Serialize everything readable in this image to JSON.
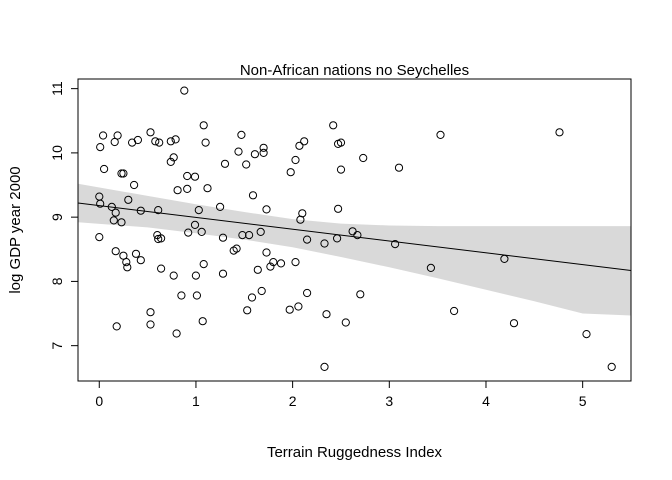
{
  "chart_data": {
    "type": "scatter",
    "title": "Non-African nations no Seychelles",
    "xlabel": "Terrain Ruggedness Index",
    "ylabel": "log GDP year 2000",
    "xlim": [
      -0.22,
      5.5
    ],
    "ylim": [
      6.45,
      11.15
    ],
    "xticks": [
      0,
      1,
      2,
      3,
      4,
      5
    ],
    "yticks": [
      7,
      8,
      9,
      10,
      11
    ],
    "grid": false,
    "legend": "none",
    "colors": {
      "points": "#000000",
      "line": "#000000",
      "band": "#d9d9d9",
      "frame": "#000000"
    },
    "regression": {
      "x": [
        -0.22,
        5.5
      ],
      "y": [
        9.22,
        8.17
      ]
    },
    "confidence_band": {
      "x": [
        -0.22,
        0.5,
        1.0,
        1.5,
        2.0,
        2.5,
        3.0,
        3.5,
        4.0,
        4.5,
        5.0,
        5.5
      ],
      "lower": [
        8.92,
        8.84,
        8.75,
        8.65,
        8.53,
        8.38,
        8.22,
        8.05,
        7.87,
        7.69,
        7.5,
        7.47
      ],
      "upper": [
        9.52,
        9.33,
        9.2,
        9.08,
        8.97,
        8.9,
        8.87,
        8.86,
        8.86,
        8.86,
        8.86,
        8.86
      ]
    },
    "points": [
      [
        0.88,
        10.97
      ],
      [
        0.04,
        10.27
      ],
      [
        0.19,
        10.27
      ],
      [
        0.01,
        10.09
      ],
      [
        0.16,
        10.17
      ],
      [
        0.34,
        10.16
      ],
      [
        0.4,
        10.2
      ],
      [
        0.53,
        10.32
      ],
      [
        0.58,
        10.18
      ],
      [
        0.62,
        10.16
      ],
      [
        0.74,
        10.18
      ],
      [
        0.79,
        10.21
      ],
      [
        0.77,
        9.93
      ],
      [
        0.74,
        9.86
      ],
      [
        1.08,
        10.43
      ],
      [
        1.1,
        10.16
      ],
      [
        1.3,
        9.83
      ],
      [
        1.44,
        10.02
      ],
      [
        1.47,
        10.28
      ],
      [
        1.52,
        9.82
      ],
      [
        1.61,
        9.98
      ],
      [
        1.7,
        10.0
      ],
      [
        1.7,
        10.08
      ],
      [
        2.07,
        10.11
      ],
      [
        2.12,
        10.18
      ],
      [
        2.03,
        9.89
      ],
      [
        1.98,
        9.7
      ],
      [
        2.42,
        10.43
      ],
      [
        2.47,
        10.14
      ],
      [
        2.5,
        10.16
      ],
      [
        2.5,
        9.74
      ],
      [
        2.73,
        9.92
      ],
      [
        3.53,
        10.28
      ],
      [
        4.76,
        10.32
      ],
      [
        3.1,
        9.77
      ],
      [
        0.05,
        9.75
      ],
      [
        0.23,
        9.68
      ],
      [
        0.25,
        9.68
      ],
      [
        0.36,
        9.5
      ],
      [
        0.91,
        9.64
      ],
      [
        0.99,
        9.63
      ],
      [
        0.81,
        9.42
      ],
      [
        0.91,
        9.44
      ],
      [
        1.12,
        9.45
      ],
      [
        1.59,
        9.34
      ],
      [
        0.0,
        9.32
      ],
      [
        0.01,
        9.21
      ],
      [
        0.13,
        9.16
      ],
      [
        0.17,
        9.07
      ],
      [
        0.3,
        9.27
      ],
      [
        0.23,
        8.92
      ],
      [
        0.43,
        9.1
      ],
      [
        0.61,
        9.11
      ],
      [
        1.03,
        9.11
      ],
      [
        1.25,
        9.16
      ],
      [
        1.73,
        9.12
      ],
      [
        2.1,
        9.06
      ],
      [
        2.08,
        8.96
      ],
      [
        2.47,
        9.13
      ],
      [
        0.15,
        8.95
      ],
      [
        0.6,
        8.72
      ],
      [
        0.64,
        8.67
      ],
      [
        0.61,
        8.66
      ],
      [
        0.92,
        8.76
      ],
      [
        0.99,
        8.88
      ],
      [
        1.06,
        8.77
      ],
      [
        1.28,
        8.68
      ],
      [
        1.39,
        8.48
      ],
      [
        1.48,
        8.72
      ],
      [
        1.55,
        8.72
      ],
      [
        1.67,
        8.77
      ],
      [
        1.73,
        8.45
      ],
      [
        2.15,
        8.65
      ],
      [
        2.33,
        8.59
      ],
      [
        2.46,
        8.67
      ],
      [
        2.62,
        8.78
      ],
      [
        2.67,
        8.72
      ],
      [
        3.06,
        8.58
      ],
      [
        0.0,
        8.69
      ],
      [
        0.17,
        8.47
      ],
      [
        0.25,
        8.4
      ],
      [
        0.38,
        8.43
      ],
      [
        0.43,
        8.33
      ],
      [
        0.28,
        8.3
      ],
      [
        0.29,
        8.22
      ],
      [
        0.64,
        8.2
      ],
      [
        0.77,
        8.09
      ],
      [
        1.0,
        8.09
      ],
      [
        1.08,
        8.27
      ],
      [
        1.28,
        8.12
      ],
      [
        1.42,
        8.51
      ],
      [
        1.77,
        8.23
      ],
      [
        1.8,
        8.3
      ],
      [
        1.88,
        8.28
      ],
      [
        2.03,
        8.3
      ],
      [
        1.97,
        7.56
      ],
      [
        1.68,
        7.85
      ],
      [
        1.64,
        8.18
      ],
      [
        1.58,
        7.75
      ],
      [
        1.53,
        7.55
      ],
      [
        2.06,
        7.61
      ],
      [
        2.15,
        7.82
      ],
      [
        0.85,
        7.78
      ],
      [
        0.53,
        7.52
      ],
      [
        0.53,
        7.33
      ],
      [
        0.18,
        7.3
      ],
      [
        0.8,
        7.19
      ],
      [
        1.01,
        7.78
      ],
      [
        1.07,
        7.38
      ],
      [
        2.35,
        7.49
      ],
      [
        2.55,
        7.36
      ],
      [
        2.7,
        7.8
      ],
      [
        3.43,
        8.21
      ],
      [
        3.67,
        7.54
      ],
      [
        4.19,
        8.35
      ],
      [
        4.29,
        7.35
      ],
      [
        5.04,
        7.18
      ],
      [
        5.3,
        6.67
      ],
      [
        2.33,
        6.67
      ]
    ]
  }
}
